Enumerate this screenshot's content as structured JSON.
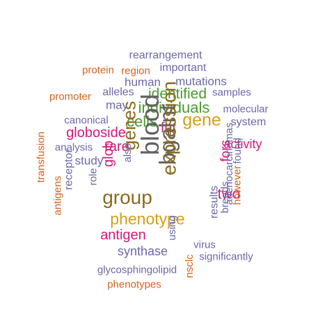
{
  "colors": {
    "green": "#4a9a2c",
    "gold": "#d4a017",
    "olive": "#8a6a1e",
    "magenta": "#d4187a",
    "purple": "#6b68a8",
    "orange": "#d1631d",
    "gray": "#616161"
  },
  "words": [
    {
      "text": "rearrangement",
      "color": "purple"
    },
    {
      "text": "protein",
      "color": "orange"
    },
    {
      "text": "region",
      "color": "orange"
    },
    {
      "text": "important",
      "color": "purple"
    },
    {
      "text": "human",
      "color": "purple"
    },
    {
      "text": "mutations",
      "color": "purple"
    },
    {
      "text": "promoter",
      "color": "orange"
    },
    {
      "text": "alleles",
      "color": "purple"
    },
    {
      "text": "identified",
      "color": "green"
    },
    {
      "text": "samples",
      "color": "purple"
    },
    {
      "text": "may",
      "color": "purple"
    },
    {
      "text": "individuals",
      "color": "green"
    },
    {
      "text": "molecular",
      "color": "purple"
    },
    {
      "text": "canonical",
      "color": "purple"
    },
    {
      "text": "cells",
      "color": "green"
    },
    {
      "text": "gene",
      "color": "gold"
    },
    {
      "text": "system",
      "color": "purple"
    },
    {
      "text": "fut",
      "color": "magenta"
    },
    {
      "text": "globoside",
      "color": "magenta"
    },
    {
      "text": "activity",
      "color": "magenta"
    },
    {
      "text": "analysis",
      "color": "purple"
    },
    {
      "text": "rare",
      "color": "magenta"
    },
    {
      "text": "study",
      "color": "purple"
    },
    {
      "text": "group",
      "color": "olive"
    },
    {
      "text": "phenotype",
      "color": "gold"
    },
    {
      "text": "antigen",
      "color": "magenta"
    },
    {
      "text": "two",
      "color": "magenta"
    },
    {
      "text": "synthase",
      "color": "purple"
    },
    {
      "text": "virus",
      "color": "purple"
    },
    {
      "text": "significantly",
      "color": "purple"
    },
    {
      "text": "glycosphingolipid",
      "color": "purple"
    },
    {
      "text": "phenotypes",
      "color": "orange"
    },
    {
      "text": "blood",
      "color": "gray"
    },
    {
      "text": "bgalnt",
      "color": "gray"
    },
    {
      "text": "expression",
      "color": "olive"
    },
    {
      "text": "genes",
      "color": "olive"
    },
    {
      "text": "glob",
      "color": "magenta"
    },
    {
      "text": "also",
      "color": "purple"
    },
    {
      "text": "fors",
      "color": "magenta"
    },
    {
      "text": "found",
      "color": "purple"
    },
    {
      "text": "adenocarcinomas",
      "color": "purple"
    },
    {
      "text": "however",
      "color": "orange"
    },
    {
      "text": "breeds",
      "color": "purple"
    },
    {
      "text": "results",
      "color": "purple"
    },
    {
      "text": "using",
      "color": "purple"
    },
    {
      "text": "nsclc",
      "color": "orange"
    },
    {
      "text": "role",
      "color": "purple"
    },
    {
      "text": "receptor",
      "color": "purple"
    },
    {
      "text": "transfusion",
      "color": "orange"
    },
    {
      "text": "antigens",
      "color": "orange"
    }
  ]
}
